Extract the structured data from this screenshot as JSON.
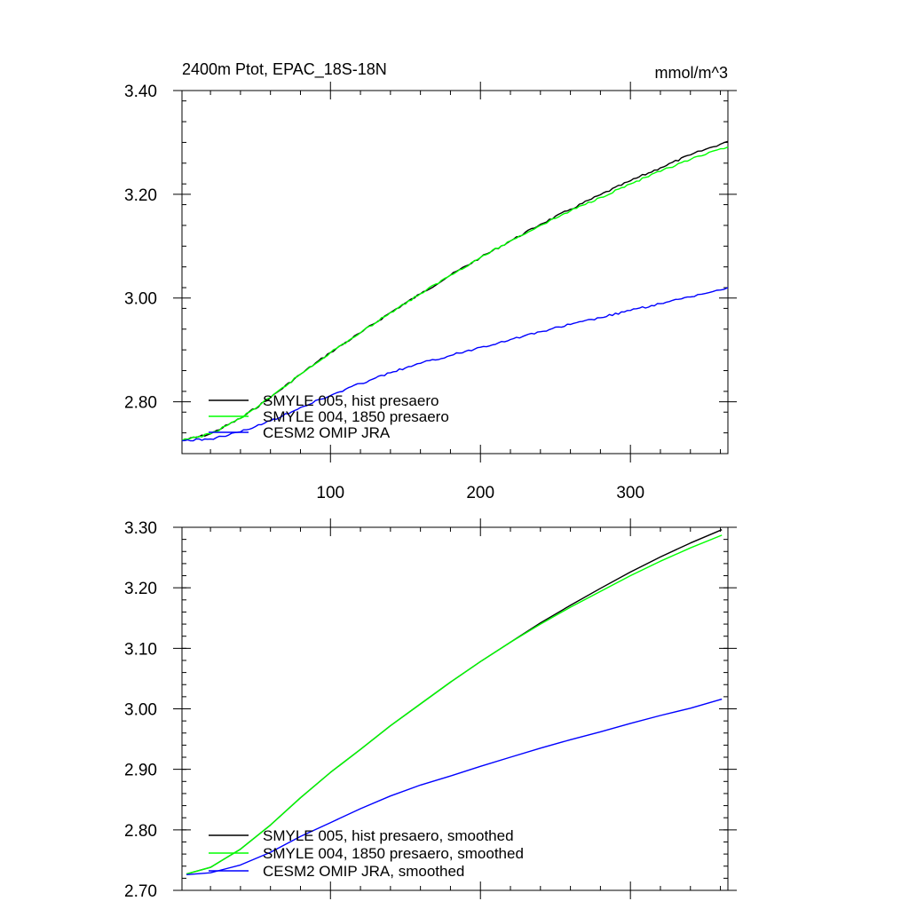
{
  "chart_data": [
    {
      "type": "line",
      "title": "2400m Ptot, EPAC_18S-18N",
      "units": "mmol/m^3",
      "xlim": [
        1,
        365
      ],
      "ylim": [
        2.7,
        3.4
      ],
      "xticks": [
        100,
        200,
        300
      ],
      "xtick_labels": [
        "100",
        "200",
        "300"
      ],
      "yticks": [
        2.8,
        3.0,
        3.2,
        3.4
      ],
      "ytick_labels": [
        "2.80",
        "3.00",
        "3.20",
        "3.40"
      ],
      "grid": false,
      "legend_position": "bottom-left",
      "series": [
        {
          "name": "SMYLE 005, hist presaero",
          "color": "#000000",
          "x": [
            1,
            20,
            40,
            60,
            80,
            100,
            120,
            140,
            160,
            180,
            200,
            220,
            240,
            260,
            280,
            300,
            320,
            340,
            365
          ],
          "y": [
            2.725,
            2.738,
            2.768,
            2.808,
            2.853,
            2.895,
            2.933,
            2.972,
            3.008,
            3.044,
            3.078,
            3.11,
            3.142,
            3.171,
            3.199,
            3.226,
            3.251,
            3.276,
            3.302
          ]
        },
        {
          "name": "SMYLE 004, 1850 presaero",
          "color": "#00ff00",
          "x": [
            1,
            20,
            40,
            60,
            80,
            100,
            120,
            140,
            160,
            180,
            200,
            220,
            240,
            260,
            280,
            300,
            320,
            340,
            365
          ],
          "y": [
            2.725,
            2.738,
            2.768,
            2.808,
            2.853,
            2.895,
            2.933,
            2.972,
            3.008,
            3.044,
            3.078,
            3.11,
            3.14,
            3.168,
            3.194,
            3.22,
            3.244,
            3.267,
            3.291
          ]
        },
        {
          "name": "CESM2 OMIP JRA",
          "color": "#0000ff",
          "x": [
            1,
            20,
            40,
            60,
            80,
            100,
            120,
            140,
            160,
            180,
            200,
            220,
            240,
            260,
            280,
            300,
            320,
            340,
            365
          ],
          "y": [
            2.725,
            2.728,
            2.742,
            2.763,
            2.789,
            2.812,
            2.835,
            2.856,
            2.874,
            2.889,
            2.905,
            2.92,
            2.935,
            2.949,
            2.962,
            2.976,
            2.989,
            3.002,
            3.02
          ]
        }
      ]
    },
    {
      "type": "line",
      "xlim": [
        1,
        365
      ],
      "ylim": [
        2.7,
        3.3
      ],
      "xticks": [
        100,
        200,
        300
      ],
      "yticks": [
        2.7,
        2.8,
        2.9,
        3.0,
        3.1,
        3.2,
        3.3
      ],
      "ytick_labels": [
        "2.70",
        "2.80",
        "2.90",
        "3.00",
        "3.10",
        "3.20",
        "3.30"
      ],
      "grid": false,
      "legend_position": "bottom-left",
      "series": [
        {
          "name": "SMYLE 005, hist presaero, smoothed",
          "color": "#000000",
          "x": [
            4,
            20,
            40,
            60,
            80,
            100,
            120,
            140,
            160,
            180,
            200,
            220,
            240,
            260,
            280,
            300,
            320,
            340,
            361
          ],
          "y": [
            2.727,
            2.738,
            2.768,
            2.808,
            2.853,
            2.895,
            2.933,
            2.972,
            3.008,
            3.044,
            3.078,
            3.11,
            3.142,
            3.171,
            3.199,
            3.226,
            3.251,
            3.274,
            3.296
          ]
        },
        {
          "name": "SMYLE 004, 1850 presaero, smoothed",
          "color": "#00ff00",
          "x": [
            4,
            20,
            40,
            60,
            80,
            100,
            120,
            140,
            160,
            180,
            200,
            220,
            240,
            260,
            280,
            300,
            320,
            340,
            361
          ],
          "y": [
            2.727,
            2.738,
            2.768,
            2.808,
            2.853,
            2.895,
            2.933,
            2.972,
            3.008,
            3.044,
            3.078,
            3.11,
            3.14,
            3.168,
            3.194,
            3.22,
            3.244,
            3.266,
            3.287
          ]
        },
        {
          "name": "CESM2 OMIP JRA, smoothed",
          "color": "#0000ff",
          "x": [
            4,
            20,
            40,
            60,
            80,
            100,
            120,
            140,
            160,
            180,
            200,
            220,
            240,
            260,
            280,
            300,
            320,
            340,
            361
          ],
          "y": [
            2.726,
            2.729,
            2.742,
            2.763,
            2.789,
            2.812,
            2.835,
            2.856,
            2.874,
            2.889,
            2.905,
            2.92,
            2.935,
            2.949,
            2.962,
            2.976,
            2.989,
            3.001,
            3.016
          ]
        }
      ]
    }
  ]
}
